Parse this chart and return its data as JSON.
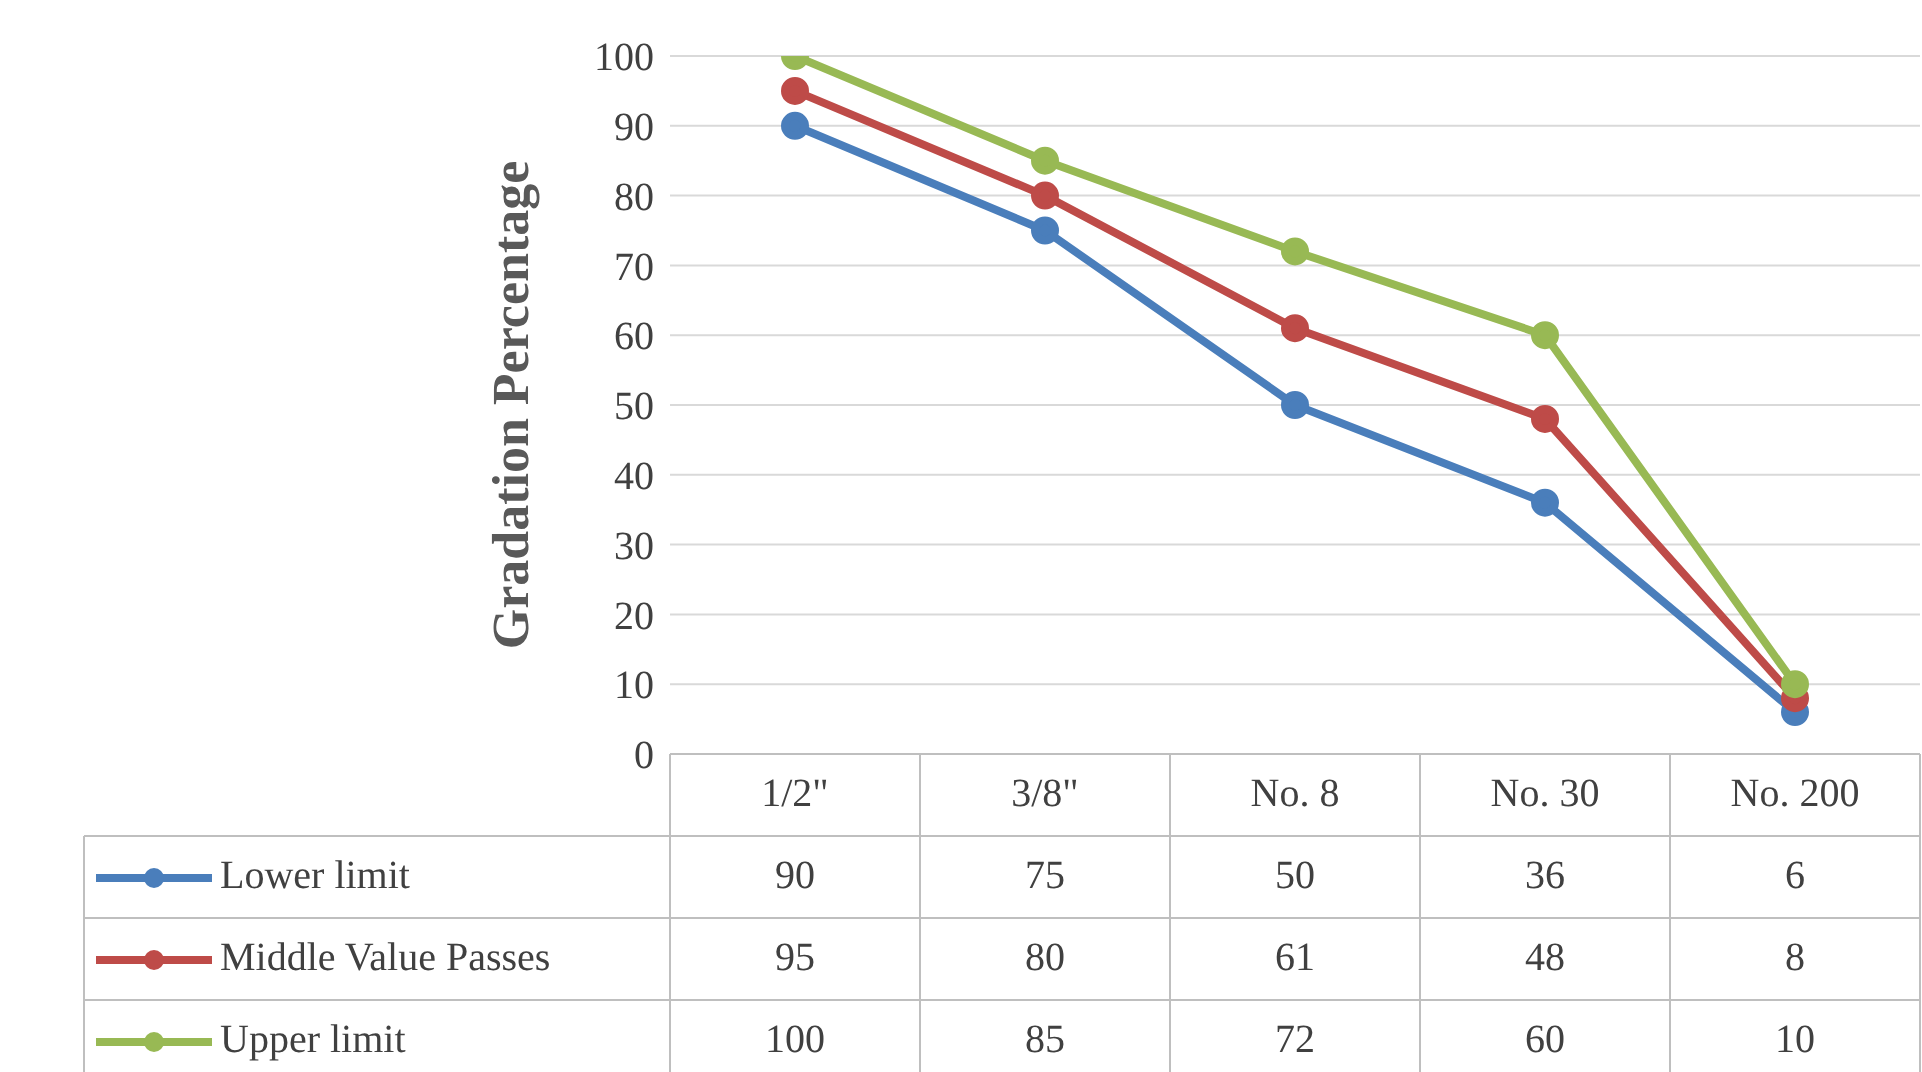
{
  "chart_data": {
    "type": "line",
    "ylabel": "Gradation Percentage",
    "categories": [
      "1/2\"",
      "3/8\"",
      "No. 8",
      "No. 30",
      "No. 200"
    ],
    "series": [
      {
        "name": "Lower limit",
        "color": "#4a7ebb",
        "values": [
          90,
          75,
          50,
          36,
          6
        ]
      },
      {
        "name": "Middle Value Passes",
        "color": "#be4b48",
        "values": [
          95,
          80,
          61,
          48,
          8
        ]
      },
      {
        "name": "Upper limit",
        "color": "#98b954",
        "values": [
          100,
          85,
          72,
          60,
          10
        ]
      }
    ],
    "ylim": [
      0,
      100
    ],
    "yticks": [
      0,
      10,
      20,
      30,
      40,
      50,
      60,
      70,
      80,
      90,
      100
    ],
    "grid": "y",
    "legend": "bottom",
    "marker": "circle",
    "line_style": "solid",
    "data_labels": true
  }
}
